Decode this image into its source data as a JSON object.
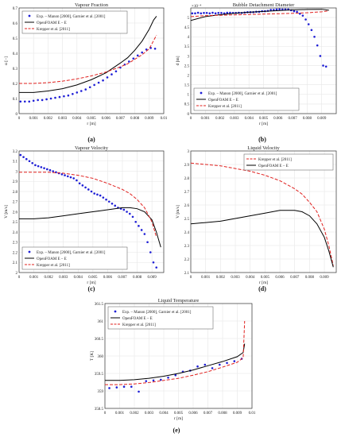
{
  "figure": {
    "panel_labels": [
      "(a)",
      "(b)",
      "(c)",
      "(d)",
      "(e)"
    ]
  },
  "style": {
    "exp_color": "#1f1fd6",
    "openfoam_color": "#000000",
    "krepper_color": "#e0201e",
    "grid_color": "#e6e6e6",
    "axis_color": "#333333"
  },
  "chart_data": [
    {
      "type": "line",
      "title": "Vapour Fraction",
      "xlabel": "r [m]",
      "ylabel": "α [−]",
      "xlim": [
        0,
        0.01
      ],
      "ylim": [
        0,
        0.7
      ],
      "xticks": [
        "0",
        "0.001",
        "0.002",
        "0.003",
        "0.004",
        "0.005",
        "0.006",
        "0.007",
        "0.008",
        "0.009",
        "0.01"
      ],
      "yticks": [
        "0",
        "0.1",
        "0.2",
        "0.3",
        "0.4",
        "0.5",
        "0.6",
        "0.7"
      ],
      "grid": true,
      "legend_position": "top-left",
      "series": [
        {
          "name": "Exp. – Manon [2000], Garnier et al. [2001]",
          "style": "points",
          "x": [
            0.0001,
            0.0004,
            0.0007,
            0.001,
            0.0013,
            0.0016,
            0.0019,
            0.0022,
            0.0025,
            0.0028,
            0.0031,
            0.0034,
            0.0037,
            0.004,
            0.0043,
            0.0046,
            0.0049,
            0.0052,
            0.0055,
            0.0058,
            0.0061,
            0.0064,
            0.0067,
            0.007,
            0.0073,
            0.0076,
            0.0079,
            0.0082,
            0.0085,
            0.0088,
            0.0091,
            0.0094
          ],
          "y": [
            0.08,
            0.08,
            0.08,
            0.085,
            0.09,
            0.09,
            0.095,
            0.1,
            0.105,
            0.11,
            0.115,
            0.12,
            0.13,
            0.14,
            0.15,
            0.16,
            0.175,
            0.19,
            0.205,
            0.22,
            0.24,
            0.26,
            0.28,
            0.305,
            0.325,
            0.345,
            0.365,
            0.385,
            0.405,
            0.425,
            0.435,
            0.43
          ]
        },
        {
          "name": "OpenFOAM E – E",
          "style": "solid",
          "x": [
            0,
            0.001,
            0.002,
            0.003,
            0.004,
            0.005,
            0.006,
            0.007,
            0.0075,
            0.008,
            0.0085,
            0.009,
            0.0093,
            0.0095
          ],
          "y": [
            0.14,
            0.14,
            0.15,
            0.165,
            0.19,
            0.225,
            0.27,
            0.335,
            0.37,
            0.42,
            0.48,
            0.56,
            0.62,
            0.645
          ]
        },
        {
          "name": "Krepper et al. [2011]",
          "style": "dashed",
          "x": [
            0,
            0.001,
            0.002,
            0.003,
            0.004,
            0.005,
            0.006,
            0.007,
            0.0075,
            0.008,
            0.0085,
            0.009,
            0.0095
          ],
          "y": [
            0.2,
            0.2,
            0.205,
            0.215,
            0.23,
            0.25,
            0.275,
            0.31,
            0.33,
            0.36,
            0.39,
            0.43,
            0.52
          ]
        }
      ]
    },
    {
      "type": "line",
      "title": "Bubble Detachment Diameter",
      "xlabel": "r [m]",
      "ylabel": "d [m]",
      "axis_multiplier": "×10⁻⁴",
      "xlim": [
        0,
        0.01
      ],
      "ylim": [
        0,
        5.5
      ],
      "xticks": [
        "0",
        "0.001",
        "0.002",
        "0.003",
        "0.004",
        "0.005",
        "0.006",
        "0.007",
        "0.008",
        "0.009"
      ],
      "yticks": [
        "0",
        "0.5",
        "1",
        "1.5",
        "2",
        "2.5",
        "3",
        "3.5",
        "4",
        "4.5",
        "5"
      ],
      "grid": true,
      "legend_position": "bottom-left",
      "series": [
        {
          "name": "Exp. – Manon [2000], Garnier et al. [2001]",
          "style": "points",
          "x": [
            0.0001,
            0.0003,
            0.0005,
            0.0007,
            0.0009,
            0.0011,
            0.0013,
            0.0015,
            0.0017,
            0.0019,
            0.0021,
            0.0023,
            0.0025,
            0.0027,
            0.0029,
            0.0031,
            0.0033,
            0.0035,
            0.0037,
            0.0039,
            0.0041,
            0.0043,
            0.0045,
            0.0047,
            0.0049,
            0.0051,
            0.0053,
            0.0055,
            0.0057,
            0.0059,
            0.0061,
            0.0063,
            0.0065,
            0.0067,
            0.0069,
            0.0071,
            0.0073,
            0.0075,
            0.0077,
            0.0079,
            0.0081,
            0.0083,
            0.0085,
            0.0087,
            0.0089,
            0.0091,
            0.0093
          ],
          "y": [
            5.22,
            5.22,
            5.25,
            5.22,
            5.24,
            5.24,
            5.22,
            5.25,
            5.22,
            5.24,
            5.24,
            5.22,
            5.25,
            5.25,
            5.24,
            5.24,
            5.25,
            5.24,
            5.26,
            5.28,
            5.28,
            5.28,
            5.3,
            5.3,
            5.33,
            5.33,
            5.35,
            5.4,
            5.4,
            5.42,
            5.43,
            5.42,
            5.42,
            5.42,
            5.38,
            5.33,
            5.3,
            5.2,
            5.1,
            4.9,
            4.65,
            4.35,
            4.0,
            3.55,
            3.0,
            2.5,
            2.45
          ]
        },
        {
          "name": "OpenFOAM E – E",
          "style": "solid",
          "x": [
            0,
            0.001,
            0.002,
            0.003,
            0.004,
            0.005,
            0.006,
            0.007,
            0.008,
            0.009,
            0.0095
          ],
          "y": [
            4.85,
            5.05,
            5.15,
            5.22,
            5.28,
            5.32,
            5.36,
            5.4,
            5.42,
            5.43,
            5.38
          ]
        },
        {
          "name": "Krepper et al. [2011]",
          "style": "dashed",
          "x": [
            0,
            0.001,
            0.002,
            0.003,
            0.004,
            0.005,
            0.006,
            0.007,
            0.008,
            0.009,
            0.0095
          ],
          "y": [
            5.05,
            5.1,
            5.12,
            5.14,
            5.16,
            5.18,
            5.2,
            5.22,
            5.25,
            5.3,
            5.35
          ]
        }
      ]
    },
    {
      "type": "line",
      "title": "Vapour Velocity",
      "xlabel": "r [m]",
      "ylabel": "V [m/s]",
      "xlim": [
        0,
        0.0098
      ],
      "ylim": [
        2,
        3.2
      ],
      "xticks": [
        "0",
        "0.001",
        "0.002",
        "0.003",
        "0.004",
        "0.005",
        "0.006",
        "0.007",
        "0.008",
        "0.009"
      ],
      "yticks": [
        "2",
        "2.1",
        "2.2",
        "2.3",
        "2.4",
        "2.5",
        "2.6",
        "2.7",
        "2.8",
        "2.9",
        "3",
        "3.1",
        "3.2"
      ],
      "grid": true,
      "legend_position": "bottom-left",
      "series": [
        {
          "name": "Exp. – Manon [2000], Garnier et al. [2001]",
          "style": "points",
          "x": [
            0.0001,
            0.0003,
            0.0005,
            0.0007,
            0.0009,
            0.0011,
            0.0013,
            0.0015,
            0.0017,
            0.0019,
            0.0021,
            0.0023,
            0.0025,
            0.0027,
            0.0029,
            0.0031,
            0.0033,
            0.0035,
            0.0037,
            0.0039,
            0.0041,
            0.0043,
            0.0045,
            0.0047,
            0.0049,
            0.0051,
            0.0053,
            0.0055,
            0.0057,
            0.0059,
            0.0061,
            0.0063,
            0.0065,
            0.0067,
            0.0069,
            0.0071,
            0.0073,
            0.0075,
            0.0077,
            0.0079,
            0.0081,
            0.0083,
            0.0085,
            0.0087,
            0.0089,
            0.0091,
            0.0093
          ],
          "y": [
            3.16,
            3.14,
            3.12,
            3.1,
            3.08,
            3.06,
            3.05,
            3.04,
            3.03,
            3.02,
            3.01,
            3.0,
            2.99,
            2.98,
            2.97,
            2.96,
            2.95,
            2.94,
            2.93,
            2.91,
            2.88,
            2.86,
            2.84,
            2.82,
            2.8,
            2.78,
            2.77,
            2.76,
            2.74,
            2.72,
            2.7,
            2.68,
            2.66,
            2.64,
            2.63,
            2.62,
            2.6,
            2.58,
            2.55,
            2.5,
            2.46,
            2.42,
            2.38,
            2.3,
            2.2,
            2.1,
            2.05
          ]
        },
        {
          "name": "OpenFOAM E – E",
          "style": "solid",
          "x": [
            0,
            0.001,
            0.002,
            0.003,
            0.004,
            0.005,
            0.006,
            0.007,
            0.0075,
            0.008,
            0.0085,
            0.009,
            0.0093,
            0.0096
          ],
          "y": [
            2.53,
            2.53,
            2.54,
            2.56,
            2.58,
            2.6,
            2.62,
            2.64,
            2.64,
            2.63,
            2.6,
            2.52,
            2.4,
            2.25
          ]
        },
        {
          "name": "Krepper et al. [2011]",
          "style": "dashed",
          "x": [
            0,
            0.001,
            0.002,
            0.003,
            0.004,
            0.005,
            0.006,
            0.007,
            0.0075,
            0.008,
            0.0085,
            0.009,
            0.0093
          ],
          "y": [
            2.99,
            2.99,
            2.99,
            2.98,
            2.96,
            2.93,
            2.88,
            2.82,
            2.78,
            2.72,
            2.64,
            2.5,
            2.35
          ]
        }
      ]
    },
    {
      "type": "line",
      "title": "Liquid Velocity",
      "xlabel": "r [m]",
      "ylabel": "V [m/s]",
      "xlim": [
        0,
        0.0098
      ],
      "ylim": [
        2.1,
        3.0
      ],
      "xticks": [
        "0",
        "0.001",
        "0.002",
        "0.003",
        "0.004",
        "0.005",
        "0.006",
        "0.007",
        "0.008",
        "0.009"
      ],
      "yticks": [
        "2.1",
        "2.2",
        "2.3",
        "2.4",
        "2.5",
        "2.6",
        "2.7",
        "2.8",
        "2.9",
        "3"
      ],
      "grid": true,
      "legend_position": "top-right",
      "series": [
        {
          "name": "Krepper et al. [2011]",
          "style": "dashed",
          "x": [
            0,
            0.001,
            0.002,
            0.003,
            0.004,
            0.005,
            0.006,
            0.007,
            0.0075,
            0.008,
            0.0085,
            0.009,
            0.0093,
            0.0096
          ],
          "y": [
            2.91,
            2.9,
            2.89,
            2.87,
            2.85,
            2.82,
            2.78,
            2.72,
            2.68,
            2.62,
            2.55,
            2.42,
            2.3,
            2.15
          ]
        },
        {
          "name": "OpenFOAM E – E",
          "style": "solid",
          "x": [
            0,
            0.001,
            0.002,
            0.003,
            0.004,
            0.005,
            0.006,
            0.007,
            0.0075,
            0.008,
            0.0085,
            0.009,
            0.0093,
            0.0096
          ],
          "y": [
            2.46,
            2.47,
            2.48,
            2.5,
            2.52,
            2.54,
            2.56,
            2.56,
            2.55,
            2.52,
            2.46,
            2.36,
            2.26,
            2.14
          ]
        }
      ]
    },
    {
      "type": "line",
      "title": "Liquid Temperature",
      "xlabel": "r [m]",
      "ylabel": "T [K]",
      "xlim": [
        0,
        0.01
      ],
      "ylim": [
        358.5,
        361.5
      ],
      "xticks": [
        "0",
        "0.001",
        "0.002",
        "0.003",
        "0.004",
        "0.005",
        "0.006",
        "0.007",
        "0.008",
        "0.009",
        "0.01"
      ],
      "yticks": [
        "358.5",
        "359",
        "359.5",
        "360",
        "360.5",
        "361",
        "361.5"
      ],
      "grid": true,
      "legend_position": "top-left",
      "series": [
        {
          "name": "Exp. – Manon [2000], Garnier et al. [2001]",
          "style": "points",
          "x": [
            0.0003,
            0.0008,
            0.0013,
            0.0018,
            0.0023,
            0.0028,
            0.0033,
            0.0038,
            0.0043,
            0.0048,
            0.0053,
            0.0058,
            0.0063,
            0.0068,
            0.0073,
            0.0078,
            0.0083,
            0.0088,
            0.0093
          ],
          "y": [
            359.08,
            359.1,
            359.12,
            359.12,
            358.98,
            359.28,
            359.3,
            359.32,
            359.38,
            359.45,
            359.55,
            359.58,
            359.7,
            359.75,
            359.65,
            359.75,
            359.8,
            359.85,
            359.92
          ]
        },
        {
          "name": "OpenFOAM E – E",
          "style": "solid",
          "x": [
            0,
            0.001,
            0.002,
            0.003,
            0.004,
            0.005,
            0.006,
            0.007,
            0.008,
            0.009,
            0.0094,
            0.0095
          ],
          "y": [
            359.3,
            359.3,
            359.32,
            359.36,
            359.42,
            359.5,
            359.6,
            359.72,
            359.84,
            359.98,
            360.1,
            360.35
          ]
        },
        {
          "name": "Krepper et al. [2011]",
          "style": "dashed",
          "x": [
            0,
            0.001,
            0.002,
            0.003,
            0.004,
            0.005,
            0.006,
            0.007,
            0.008,
            0.009,
            0.0094,
            0.0095
          ],
          "y": [
            359.18,
            359.18,
            359.2,
            359.24,
            359.3,
            359.36,
            359.45,
            359.55,
            359.68,
            359.82,
            359.95,
            361
          ]
        }
      ]
    }
  ]
}
